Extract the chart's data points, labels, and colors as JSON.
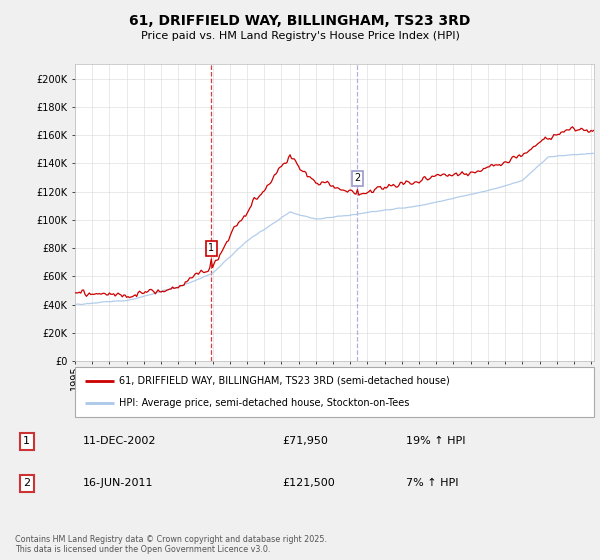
{
  "title": "61, DRIFFIELD WAY, BILLINGHAM, TS23 3RD",
  "subtitle": "Price paid vs. HM Land Registry's House Price Index (HPI)",
  "ylim": [
    0,
    210000
  ],
  "yticks": [
    0,
    20000,
    40000,
    60000,
    80000,
    100000,
    120000,
    140000,
    160000,
    180000,
    200000
  ],
  "line1_color": "#cc0000",
  "line2_color": "#aac8e8",
  "vline1_color": "#cc0000",
  "vline2_color": "#9999cc",
  "legend_line1": "61, DRIFFIELD WAY, BILLINGHAM, TS23 3RD (semi-detached house)",
  "legend_line2": "HPI: Average price, semi-detached house, Stockton-on-Tees",
  "sale1_date": "11-DEC-2002",
  "sale1_price": "£71,950",
  "sale1_hpi": "19% ↑ HPI",
  "sale2_date": "16-JUN-2011",
  "sale2_price": "£121,500",
  "sale2_hpi": "7% ↑ HPI",
  "footer": "Contains HM Land Registry data © Crown copyright and database right 2025.\nThis data is licensed under the Open Government Licence v3.0.",
  "background_color": "#f0f0f0",
  "plot_bg_color": "#ffffff",
  "start_year": 1995,
  "end_year": 2025
}
